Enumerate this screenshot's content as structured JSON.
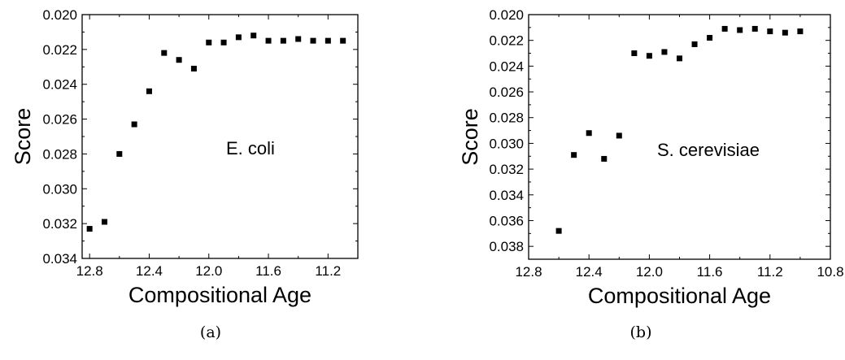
{
  "chart_data": [
    {
      "type": "scatter",
      "caption": "(a)",
      "annotation": "E. coli",
      "xlabel": "Compositional Age",
      "ylabel": "Score",
      "xlim": [
        12.85,
        11.0
      ],
      "ylim": [
        0.02,
        0.034
      ],
      "x_reversed": true,
      "y_reversed": true,
      "xticks": [
        12.8,
        12.4,
        12.0,
        11.6,
        11.2
      ],
      "xtick_labels": [
        "12.8",
        "12.4",
        "12.0",
        "11.6",
        "11.2"
      ],
      "yticks": [
        0.02,
        0.022,
        0.024,
        0.026,
        0.028,
        0.03,
        0.032,
        0.034
      ],
      "ytick_labels": [
        "0.020",
        "0.022",
        "0.024",
        "0.026",
        "0.028",
        "0.030",
        "0.032",
        "0.034"
      ],
      "grid": false,
      "marker": "square",
      "series": [
        {
          "x": [
            12.8,
            12.7,
            12.6,
            12.5,
            12.4,
            12.3,
            12.2,
            12.1,
            12.0,
            11.9,
            11.8,
            11.7,
            11.6,
            11.5,
            11.4,
            11.3,
            11.2,
            11.1
          ],
          "y": [
            0.0323,
            0.0319,
            0.028,
            0.0263,
            0.0244,
            0.0222,
            0.0226,
            0.0231,
            0.0216,
            0.0216,
            0.0213,
            0.0212,
            0.0215,
            0.0215,
            0.0214,
            0.0215,
            0.0215,
            0.0215
          ]
        }
      ]
    },
    {
      "type": "scatter",
      "caption": "(b)",
      "annotation": "S. cerevisiae",
      "xlabel": "Compositional Age",
      "ylabel": "Score",
      "xlim": [
        12.8,
        10.8
      ],
      "ylim": [
        0.02,
        0.039
      ],
      "x_reversed": true,
      "y_reversed": true,
      "xticks": [
        12.8,
        12.4,
        12.0,
        11.6,
        11.2,
        10.8
      ],
      "xtick_labels": [
        "12.8",
        "12.4",
        "12.0",
        "11.6",
        "11.2",
        "10.8"
      ],
      "yticks": [
        0.02,
        0.022,
        0.024,
        0.026,
        0.028,
        0.03,
        0.032,
        0.034,
        0.036,
        0.038
      ],
      "ytick_labels": [
        "0.020",
        "0.022",
        "0.024",
        "0.026",
        "0.028",
        "0.030",
        "0.032",
        "0.034",
        "0.036",
        "0.038"
      ],
      "grid": false,
      "marker": "square",
      "series": [
        {
          "x": [
            12.6,
            12.5,
            12.4,
            12.3,
            12.2,
            12.1,
            12.0,
            11.9,
            11.8,
            11.7,
            11.6,
            11.5,
            11.4,
            11.3,
            11.2,
            11.1,
            11.0
          ],
          "y": [
            0.0368,
            0.0309,
            0.0292,
            0.0312,
            0.0294,
            0.023,
            0.0232,
            0.0229,
            0.0234,
            0.0223,
            0.0218,
            0.0211,
            0.0212,
            0.0211,
            0.0213,
            0.0214,
            0.0213
          ]
        }
      ]
    }
  ]
}
